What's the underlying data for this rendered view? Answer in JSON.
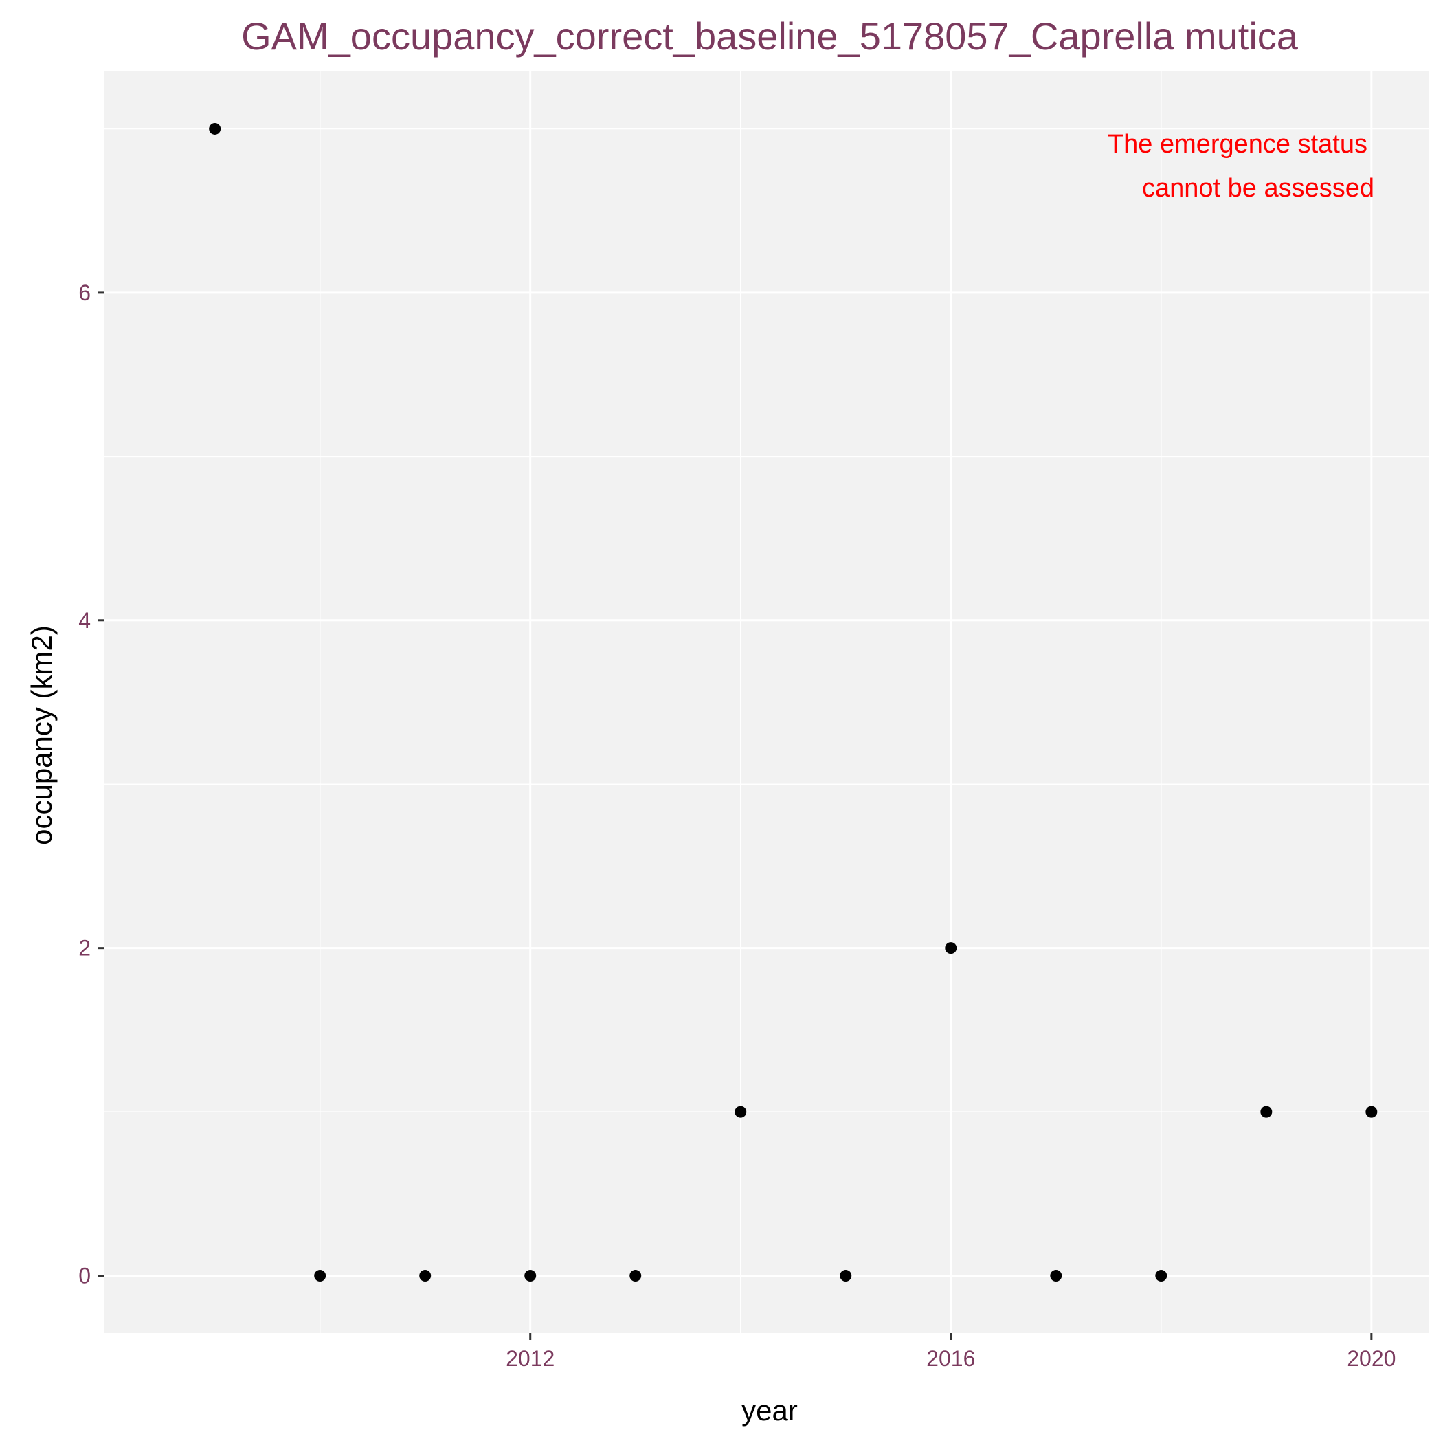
{
  "chart_data": {
    "type": "scatter",
    "title": "GAM_occupancy_correct_baseline_5178057_Caprella mutica",
    "xlabel": "year",
    "ylabel": "occupancy (km2)",
    "x": [
      2009,
      2010,
      2011,
      2012,
      2013,
      2014,
      2015,
      2016,
      2017,
      2018,
      2019,
      2020
    ],
    "y": [
      7,
      0,
      0,
      0,
      0,
      1,
      0,
      2,
      0,
      0,
      1,
      1
    ],
    "xlim": [
      2007.95,
      2020.55
    ],
    "ylim": [
      -0.35,
      7.35
    ],
    "x_ticks": [
      2012,
      2016,
      2020
    ],
    "x_tick_labels": [
      "2012",
      "2016",
      "2020"
    ],
    "y_ticks": [
      0,
      2,
      4,
      6
    ],
    "y_tick_labels": [
      "0",
      "2",
      "4",
      "6"
    ],
    "grid": true,
    "annotation": {
      "lines": [
        "The emergence status",
        "cannot be assessed"
      ],
      "position": "top-right"
    },
    "colors": {
      "title": "#7B3A5E",
      "tick_labels": "#7B3A5E",
      "annotation": "#FF0000",
      "points": "#000000",
      "panel_background": "#F2F2F2",
      "grid": "#FFFFFF"
    }
  }
}
